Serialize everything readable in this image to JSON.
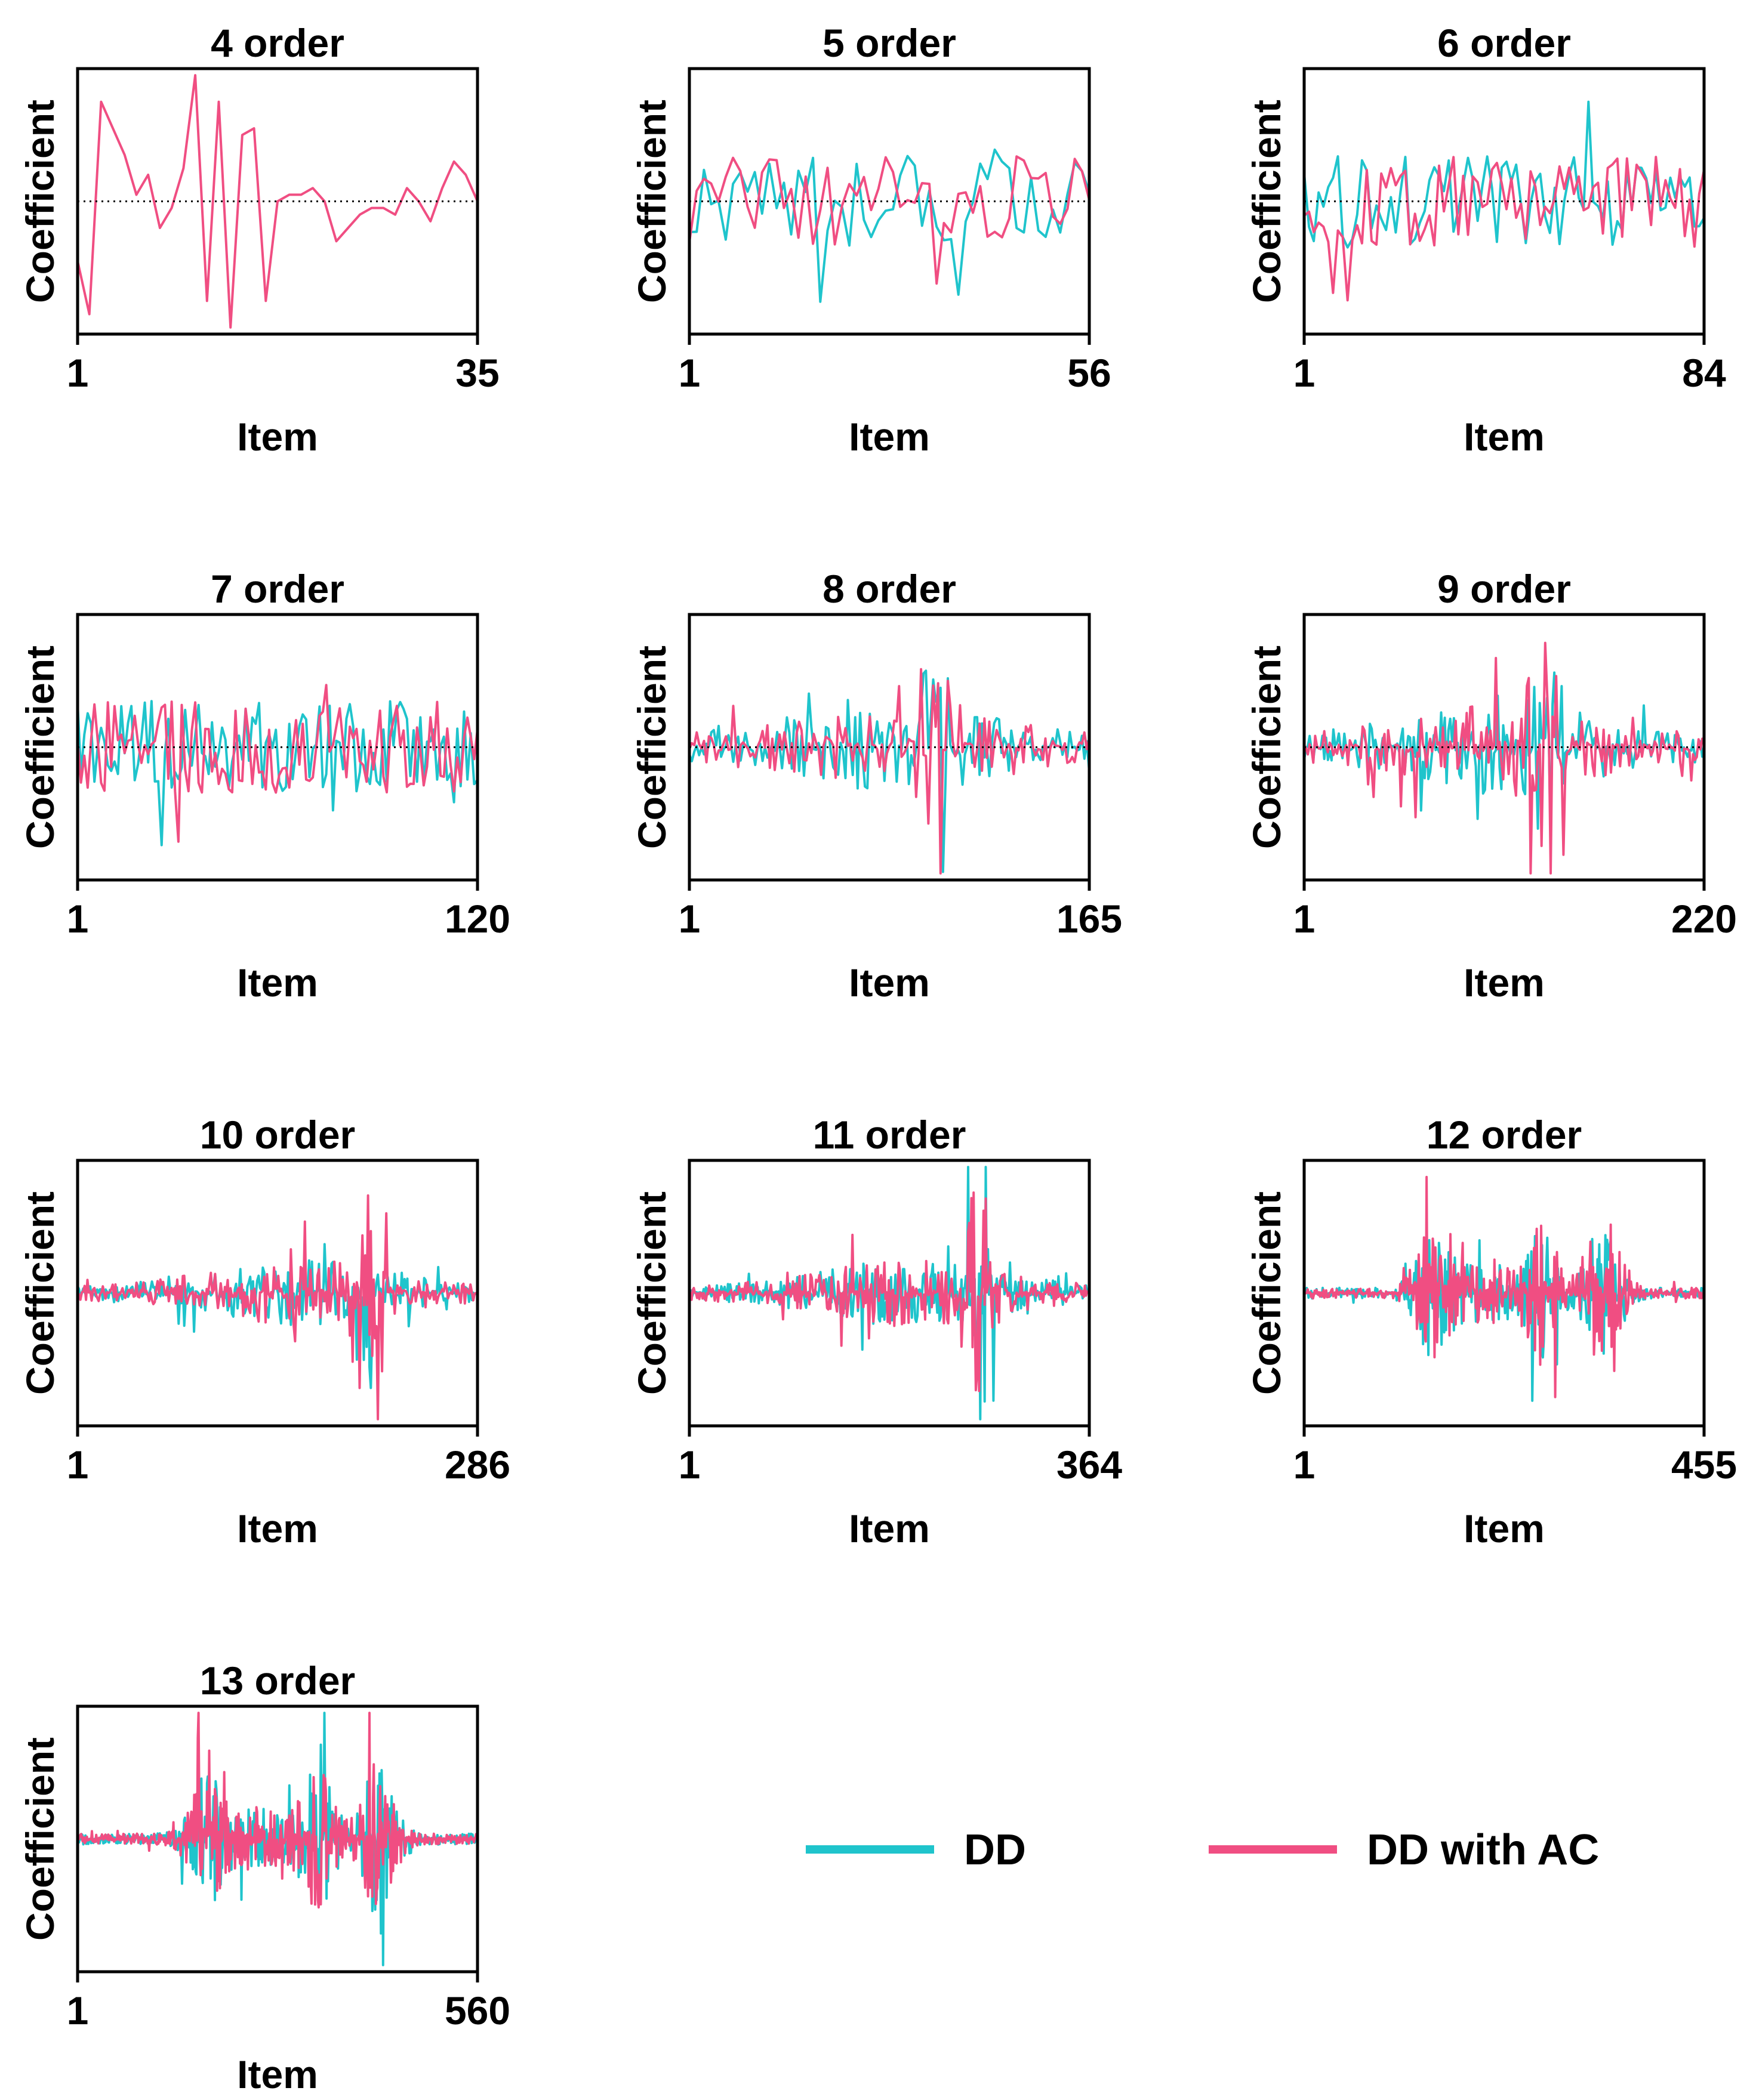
{
  "colors": {
    "dd": "#1fc4cc",
    "dd_ac": "#f04e82",
    "axis": "#000000"
  },
  "legend": [
    {
      "key": "dd",
      "label": "DD"
    },
    {
      "key": "dd_ac",
      "label": "DD with AC"
    }
  ],
  "chart_data": [
    {
      "type": "line",
      "title": "4 order",
      "xlabel": "Item",
      "ylabel": "Coefficient",
      "xlim": [
        1,
        35
      ],
      "xticks": [
        1,
        35
      ],
      "ylim": [
        -1,
        1
      ],
      "zero_line": true,
      "series": [
        "dd_ac"
      ],
      "pattern": "ac_only"
    },
    {
      "type": "line",
      "title": "5 order",
      "xlabel": "Item",
      "ylabel": "Coefficient",
      "xlim": [
        1,
        56
      ],
      "xticks": [
        1,
        56
      ],
      "ylim": [
        -1,
        1
      ],
      "zero_line": true,
      "series": [
        "dd",
        "dd_ac"
      ],
      "pattern": "uniform"
    },
    {
      "type": "line",
      "title": "6 order",
      "xlabel": "Item",
      "ylabel": "Coefficient",
      "xlim": [
        1,
        84
      ],
      "xticks": [
        1,
        84
      ],
      "ylim": [
        -1,
        1
      ],
      "zero_line": true,
      "series": [
        "dd",
        "dd_ac"
      ],
      "pattern": "uniform"
    },
    {
      "type": "line",
      "title": "7 order",
      "xlabel": "Item",
      "ylabel": "Coefficient",
      "xlim": [
        1,
        120
      ],
      "xticks": [
        1,
        120
      ],
      "ylim": [
        -1,
        1
      ],
      "zero_line": true,
      "series": [
        "dd",
        "dd_ac"
      ],
      "pattern": "uniform"
    },
    {
      "type": "line",
      "title": "8 order",
      "xlabel": "Item",
      "ylabel": "Coefficient",
      "xlim": [
        1,
        165
      ],
      "xticks": [
        1,
        165
      ],
      "ylim": [
        -1,
        1
      ],
      "zero_line": true,
      "series": [
        "dd",
        "dd_ac"
      ],
      "pattern": "center"
    },
    {
      "type": "line",
      "title": "9 order",
      "xlabel": "Item",
      "ylabel": "Coefficient",
      "xlim": [
        1,
        220
      ],
      "xticks": [
        1,
        220
      ],
      "ylim": [
        -1,
        1
      ],
      "zero_line": true,
      "series": [
        "dd",
        "dd_ac"
      ],
      "pattern": "center"
    },
    {
      "type": "line",
      "title": "10 order",
      "xlabel": "Item",
      "ylabel": "Coefficient",
      "xlim": [
        1,
        286
      ],
      "xticks": [
        1,
        286
      ],
      "ylim": [
        -1,
        1
      ],
      "zero_line": false,
      "series": [
        "dd",
        "dd_ac"
      ],
      "pattern": "late"
    },
    {
      "type": "line",
      "title": "11 order",
      "xlabel": "Item",
      "ylabel": "Coefficient",
      "xlim": [
        1,
        364
      ],
      "xticks": [
        1,
        364
      ],
      "ylim": [
        -1,
        1
      ],
      "zero_line": false,
      "series": [
        "dd",
        "dd_ac"
      ],
      "pattern": "late"
    },
    {
      "type": "line",
      "title": "12 order",
      "xlabel": "Item",
      "ylabel": "Coefficient",
      "xlim": [
        1,
        455
      ],
      "xticks": [
        1,
        455
      ],
      "ylim": [
        -1,
        1
      ],
      "zero_line": false,
      "series": [
        "dd",
        "dd_ac"
      ],
      "pattern": "bursts"
    },
    {
      "type": "line",
      "title": "13 order",
      "xlabel": "Item",
      "ylabel": "Coefficient",
      "xlim": [
        1,
        560
      ],
      "xticks": [
        1,
        560
      ],
      "ylim": [
        -1,
        1
      ],
      "zero_line": false,
      "series": [
        "dd",
        "dd_ac"
      ],
      "pattern": "bursts"
    }
  ]
}
